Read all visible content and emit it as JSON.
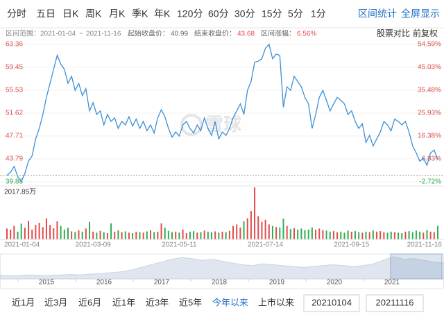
{
  "tabs": [
    "分时",
    "五日",
    "日K",
    "周K",
    "月K",
    "季K",
    "年K",
    "120分",
    "60分",
    "30分",
    "15分",
    "5分",
    "1分"
  ],
  "actions": [
    "区间统计",
    "全屏显示"
  ],
  "info": {
    "range_label": "区间范围：",
    "range_start": "2021-01-04",
    "range_sep": "~",
    "range_end": "2021-11-16",
    "start_label": "起始收盘价：",
    "end_label": "结束收盘价：",
    "change_label": "区间涨幅：",
    "change_value": "6.56%",
    "compare": "股票对比",
    "adjust": "前复权"
  },
  "watermark": "雪球",
  "chart_data": {
    "type": "line",
    "base_value": 40.99,
    "categories": [
      "2021-01-04",
      null,
      null,
      null,
      null,
      null,
      null,
      null,
      null,
      null,
      null,
      null,
      null,
      null,
      null,
      null,
      null,
      null,
      null,
      null,
      null,
      null,
      null,
      null,
      "2021-03-09",
      null,
      null,
      null,
      null,
      null,
      null,
      null,
      null,
      null,
      null,
      null,
      null,
      null,
      null,
      null,
      null,
      null,
      null,
      null,
      null,
      null,
      null,
      null,
      "2021-05-11",
      null,
      null,
      null,
      null,
      null,
      null,
      null,
      null,
      null,
      null,
      null,
      null,
      null,
      null,
      null,
      null,
      null,
      null,
      null,
      null,
      null,
      null,
      null,
      "2021-07-14",
      null,
      null,
      null,
      null,
      null,
      null,
      null,
      null,
      null,
      null,
      null,
      null,
      null,
      null,
      null,
      null,
      null,
      null,
      null,
      null,
      null,
      null,
      null,
      "2021-09-15",
      null,
      null,
      null,
      null,
      null,
      null,
      null,
      null,
      null,
      null,
      null,
      null,
      null,
      null,
      null,
      null,
      null,
      null,
      null,
      null,
      null,
      null,
      null,
      "2021-11-16"
    ],
    "series": [
      {
        "name": "收盘价",
        "color": "#3b8fd6",
        "values": [
          40.99,
          41.5,
          42.5,
          40.8,
          39.9,
          41.3,
          43.4,
          44.3,
          47.2,
          49.0,
          51.4,
          54.3,
          56.7,
          59.1,
          61.5,
          60.0,
          59.1,
          56.7,
          57.9,
          55.5,
          56.7,
          54.6,
          55.8,
          52.0,
          53.4,
          51.4,
          52.0,
          49.6,
          51.4,
          50.2,
          50.8,
          49.0,
          50.2,
          49.6,
          51.0,
          49.4,
          50.6,
          49.0,
          50.2,
          48.6,
          49.6,
          48.2,
          50.8,
          52.2,
          51.0,
          49.0,
          47.5,
          48.4,
          47.7,
          49.6,
          50.2,
          49.0,
          48.2,
          49.6,
          48.6,
          50.8,
          49.0,
          47.8,
          50.2,
          47.2,
          48.4,
          47.8,
          49.0,
          50.8,
          52.0,
          53.2,
          51.4,
          55.5,
          57.0,
          60.3,
          60.5,
          60.9,
          62.7,
          63.36,
          60.9,
          61.7,
          61.5,
          52.6,
          56.1,
          55.5,
          57.9,
          57.0,
          56.1,
          54.3,
          53.2,
          49.0,
          51.4,
          54.3,
          55.5,
          53.8,
          52.0,
          53.2,
          54.3,
          53.8,
          53.2,
          51.4,
          52.0,
          50.2,
          49.0,
          49.8,
          46.6,
          47.8,
          46.0,
          47.2,
          48.4,
          50.2,
          49.6,
          48.6,
          50.6,
          50.2,
          49.6,
          50.2,
          48.4,
          46.0,
          44.8,
          43.4,
          43.9,
          42.7,
          44.8,
          45.3,
          43.68
        ]
      }
    ],
    "ylim": [
      39.88,
      63.36
    ],
    "yticks": [
      63.36,
      59.45,
      55.53,
      51.62,
      47.71,
      43.79,
      39.88
    ],
    "y2lim": [
      -2.72,
      54.59
    ],
    "y2ticks": [
      {
        "value": 54.59,
        "label": "54.59%"
      },
      {
        "value": 45.03,
        "label": "45.03%"
      },
      {
        "value": 35.48,
        "label": "35.48%"
      },
      {
        "value": 25.93,
        "label": "25.93%"
      },
      {
        "value": 16.38,
        "label": "16.38%"
      },
      {
        "value": 6.83,
        "label": "6.83%"
      },
      {
        "value": -2.72,
        "label": "-2.72%"
      }
    ],
    "grid": true,
    "up_color": "#e5494a",
    "down_color": "#2eae51",
    "volume": {
      "max_label": "2017.85万",
      "max": 2017.85,
      "values": [
        420,
        380,
        520,
        300,
        610,
        450,
        720,
        380,
        560,
        640,
        480,
        820,
        560,
        430,
        700,
        520,
        380,
        450,
        310,
        280,
        350,
        300,
        420,
        680,
        300,
        260,
        330,
        280,
        240,
        620,
        300,
        350,
        280,
        310,
        260,
        240,
        300,
        280,
        260,
        310,
        350,
        280,
        300,
        620,
        450,
        330,
        280,
        300,
        260,
        380,
        240,
        300,
        320,
        260,
        280,
        340,
        300,
        280,
        310,
        260,
        300,
        280,
        330,
        520,
        580,
        460,
        700,
        820,
        1100,
        2017.85,
        900,
        680,
        760,
        580,
        520,
        480,
        460,
        800,
        520,
        400,
        430,
        380,
        420,
        360,
        380,
        460,
        380,
        420,
        360,
        340,
        300,
        320,
        280,
        300,
        260,
        340,
        300,
        320,
        280,
        260,
        300,
        280,
        340,
        300,
        320,
        280,
        260,
        300,
        280,
        260,
        240,
        300,
        320,
        280,
        340,
        300,
        260,
        360,
        300,
        280,
        520
      ]
    }
  },
  "navigator": {
    "years": [
      "2015",
      "2016",
      "2017",
      "2018",
      "2019",
      "2020",
      "2021"
    ],
    "values": [
      8,
      7,
      8,
      9,
      8,
      8,
      9,
      10,
      9,
      11,
      12,
      14,
      16,
      20,
      26,
      32,
      38,
      44,
      48,
      46,
      42,
      44,
      40,
      36,
      32,
      30,
      34,
      32,
      30,
      28,
      26,
      28,
      30,
      32,
      30,
      28,
      30,
      34,
      42,
      50,
      44,
      46,
      42,
      38,
      36
    ]
  },
  "ranges": [
    "近1月",
    "近3月",
    "近6月",
    "近1年",
    "近3年",
    "近5年",
    "今年以来",
    "上市以来"
  ],
  "active_range": 6,
  "inputs": [
    "20210104",
    "20211116"
  ]
}
